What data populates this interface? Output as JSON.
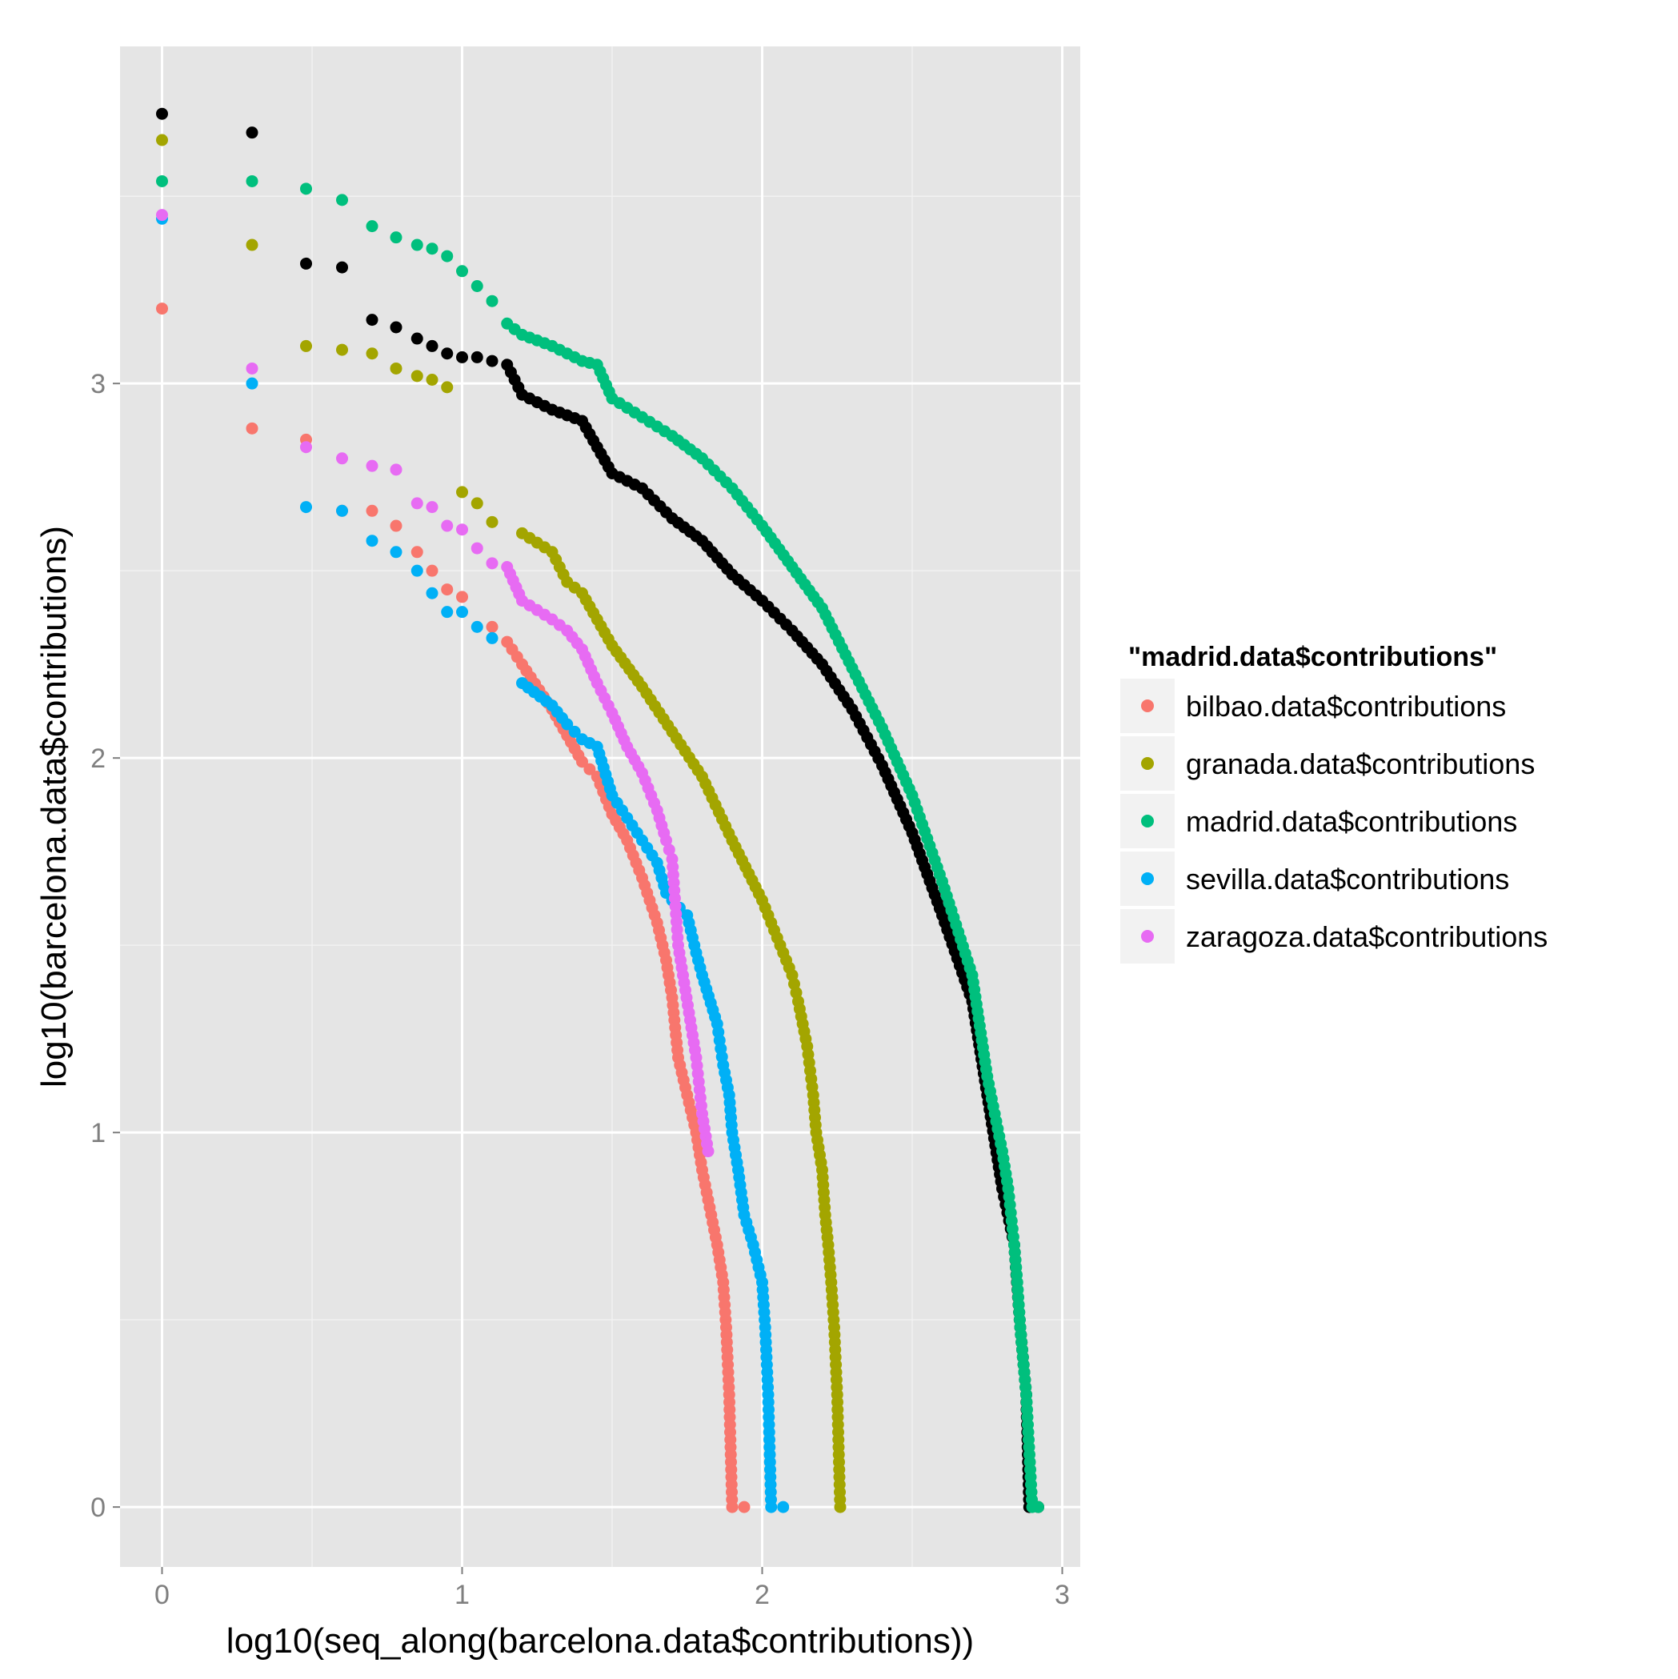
{
  "chart_data": {
    "type": "scatter",
    "xlabel": "log10(seq_along(barcelona.data$contributions))",
    "ylabel": "log10(barcelona.data$contributions)",
    "xlim": [
      -0.14,
      3.06
    ],
    "ylim": [
      -0.16,
      3.9
    ],
    "x_ticks": [
      0,
      1,
      2,
      3
    ],
    "y_ticks": [
      0,
      1,
      2,
      3
    ],
    "grid": true,
    "legend": {
      "title": "\"madrid.data$contributions\"",
      "placement": "right",
      "entries": [
        {
          "label": "bilbao.data$contributions",
          "color": "#F8766D"
        },
        {
          "label": "granada.data$contributions",
          "color": "#A3A500"
        },
        {
          "label": "madrid.data$contributions",
          "color": "#00BF7D"
        },
        {
          "label": "sevilla.data$contributions",
          "color": "#00B0F6"
        },
        {
          "label": "zaragoza.data$contributions",
          "color": "#E76BF3"
        }
      ]
    },
    "series": [
      {
        "color": "#000000",
        "points": [
          [
            0,
            3.72
          ],
          [
            0.3,
            3.67
          ],
          [
            0.48,
            3.32
          ],
          [
            0.6,
            3.31
          ],
          [
            0.7,
            3.17
          ],
          [
            0.78,
            3.15
          ],
          [
            0.85,
            3.12
          ],
          [
            0.9,
            3.1
          ],
          [
            0.95,
            3.08
          ],
          [
            1.0,
            3.07
          ],
          [
            1.05,
            3.07
          ],
          [
            1.1,
            3.06
          ],
          [
            1.15,
            3.05
          ],
          [
            1.2,
            2.97
          ],
          [
            1.3,
            2.93
          ],
          [
            1.4,
            2.9
          ],
          [
            1.5,
            2.76
          ],
          [
            1.6,
            2.72
          ],
          [
            1.7,
            2.64
          ],
          [
            1.8,
            2.58
          ],
          [
            1.9,
            2.49
          ],
          [
            2.0,
            2.42
          ],
          [
            2.1,
            2.34
          ],
          [
            2.2,
            2.25
          ],
          [
            2.3,
            2.13
          ],
          [
            2.4,
            1.98
          ],
          [
            2.5,
            1.8
          ],
          [
            2.6,
            1.58
          ],
          [
            2.7,
            1.35
          ],
          [
            2.75,
            1.1
          ],
          [
            2.8,
            0.85
          ],
          [
            2.84,
            0.7
          ],
          [
            2.86,
            0.48
          ],
          [
            2.88,
            0.3
          ],
          [
            2.89,
            0.0
          ],
          [
            2.92,
            0.0
          ]
        ]
      },
      {
        "name": "bilbao.data$contributions",
        "color": "#F8766D",
        "points": [
          [
            0,
            3.2
          ],
          [
            0.3,
            2.88
          ],
          [
            0.48,
            2.85
          ],
          [
            0.6,
            2.66
          ],
          [
            0.7,
            2.66
          ],
          [
            0.78,
            2.62
          ],
          [
            0.85,
            2.55
          ],
          [
            0.9,
            2.5
          ],
          [
            0.95,
            2.45
          ],
          [
            1.0,
            2.43
          ],
          [
            1.1,
            2.35
          ],
          [
            1.15,
            2.31
          ],
          [
            1.2,
            2.25
          ],
          [
            1.3,
            2.13
          ],
          [
            1.35,
            2.06
          ],
          [
            1.4,
            1.99
          ],
          [
            1.45,
            1.95
          ],
          [
            1.5,
            1.85
          ],
          [
            1.55,
            1.78
          ],
          [
            1.6,
            1.68
          ],
          [
            1.65,
            1.56
          ],
          [
            1.68,
            1.46
          ],
          [
            1.7,
            1.36
          ],
          [
            1.72,
            1.2
          ],
          [
            1.75,
            1.1
          ],
          [
            1.78,
            1.0
          ],
          [
            1.8,
            0.9
          ],
          [
            1.83,
            0.78
          ],
          [
            1.85,
            0.7
          ],
          [
            1.87,
            0.6
          ],
          [
            1.88,
            0.48
          ],
          [
            1.89,
            0.3
          ],
          [
            1.9,
            0.0
          ],
          [
            1.94,
            0.0
          ]
        ]
      },
      {
        "name": "granada.data$contributions",
        "color": "#A3A500",
        "points": [
          [
            0,
            3.65
          ],
          [
            0.3,
            3.37
          ],
          [
            0.48,
            3.1
          ],
          [
            0.6,
            3.09
          ],
          [
            0.7,
            3.08
          ],
          [
            0.78,
            3.04
          ],
          [
            0.85,
            3.02
          ],
          [
            0.9,
            3.01
          ],
          [
            0.95,
            2.99
          ],
          [
            1.0,
            2.71
          ],
          [
            1.05,
            2.68
          ],
          [
            1.1,
            2.63
          ],
          [
            1.2,
            2.6
          ],
          [
            1.3,
            2.55
          ],
          [
            1.35,
            2.47
          ],
          [
            1.4,
            2.44
          ],
          [
            1.5,
            2.3
          ],
          [
            1.6,
            2.19
          ],
          [
            1.7,
            2.07
          ],
          [
            1.8,
            1.95
          ],
          [
            1.9,
            1.78
          ],
          [
            2.0,
            1.62
          ],
          [
            2.05,
            1.52
          ],
          [
            2.1,
            1.42
          ],
          [
            2.12,
            1.35
          ],
          [
            2.15,
            1.23
          ],
          [
            2.17,
            1.1
          ],
          [
            2.18,
            1.0
          ],
          [
            2.2,
            0.9
          ],
          [
            2.21,
            0.78
          ],
          [
            2.22,
            0.7
          ],
          [
            2.23,
            0.6
          ],
          [
            2.24,
            0.48
          ],
          [
            2.25,
            0.3
          ],
          [
            2.26,
            0.0
          ]
        ]
      },
      {
        "name": "madrid.data$contributions",
        "color": "#00BF7D",
        "points": [
          [
            0,
            3.54
          ],
          [
            0.3,
            3.54
          ],
          [
            0.48,
            3.52
          ],
          [
            0.6,
            3.49
          ],
          [
            0.7,
            3.42
          ],
          [
            0.78,
            3.39
          ],
          [
            0.85,
            3.37
          ],
          [
            0.9,
            3.36
          ],
          [
            0.95,
            3.34
          ],
          [
            1.0,
            3.3
          ],
          [
            1.05,
            3.26
          ],
          [
            1.1,
            3.22
          ],
          [
            1.15,
            3.16
          ],
          [
            1.2,
            3.13
          ],
          [
            1.3,
            3.1
          ],
          [
            1.4,
            3.06
          ],
          [
            1.45,
            3.05
          ],
          [
            1.5,
            2.96
          ],
          [
            1.6,
            2.91
          ],
          [
            1.7,
            2.86
          ],
          [
            1.8,
            2.8
          ],
          [
            1.9,
            2.72
          ],
          [
            2.0,
            2.62
          ],
          [
            2.1,
            2.51
          ],
          [
            2.2,
            2.4
          ],
          [
            2.3,
            2.24
          ],
          [
            2.4,
            2.08
          ],
          [
            2.5,
            1.9
          ],
          [
            2.6,
            1.67
          ],
          [
            2.7,
            1.42
          ],
          [
            2.75,
            1.15
          ],
          [
            2.8,
            0.95
          ],
          [
            2.82,
            0.85
          ],
          [
            2.84,
            0.7
          ],
          [
            2.85,
            0.6
          ],
          [
            2.86,
            0.48
          ],
          [
            2.88,
            0.3
          ],
          [
            2.9,
            0.0
          ],
          [
            2.92,
            0.0
          ]
        ]
      },
      {
        "name": "sevilla.data$contributions",
        "color": "#00B0F6",
        "points": [
          [
            0,
            3.44
          ],
          [
            0.3,
            3.0
          ],
          [
            0.48,
            2.67
          ],
          [
            0.6,
            2.66
          ],
          [
            0.7,
            2.58
          ],
          [
            0.78,
            2.55
          ],
          [
            0.85,
            2.5
          ],
          [
            0.9,
            2.44
          ],
          [
            0.95,
            2.39
          ],
          [
            1.0,
            2.39
          ],
          [
            1.05,
            2.35
          ],
          [
            1.1,
            2.32
          ],
          [
            1.2,
            2.2
          ],
          [
            1.3,
            2.14
          ],
          [
            1.35,
            2.09
          ],
          [
            1.4,
            2.05
          ],
          [
            1.45,
            2.03
          ],
          [
            1.5,
            1.9
          ],
          [
            1.55,
            1.84
          ],
          [
            1.6,
            1.78
          ],
          [
            1.65,
            1.72
          ],
          [
            1.68,
            1.64
          ],
          [
            1.7,
            1.62
          ],
          [
            1.75,
            1.58
          ],
          [
            1.78,
            1.48
          ],
          [
            1.8,
            1.42
          ],
          [
            1.85,
            1.29
          ],
          [
            1.87,
            1.18
          ],
          [
            1.89,
            1.1
          ],
          [
            1.9,
            1.0
          ],
          [
            1.92,
            0.9
          ],
          [
            1.94,
            0.78
          ],
          [
            1.97,
            0.7
          ],
          [
            2.0,
            0.6
          ],
          [
            2.01,
            0.48
          ],
          [
            2.02,
            0.3
          ],
          [
            2.03,
            0.0
          ],
          [
            2.07,
            0.0
          ]
        ]
      },
      {
        "name": "zaragoza.data$contributions",
        "color": "#E76BF3",
        "points": [
          [
            0,
            3.45
          ],
          [
            0.3,
            3.04
          ],
          [
            0.48,
            2.83
          ],
          [
            0.6,
            2.8
          ],
          [
            0.7,
            2.78
          ],
          [
            0.78,
            2.77
          ],
          [
            0.85,
            2.68
          ],
          [
            0.9,
            2.67
          ],
          [
            0.95,
            2.62
          ],
          [
            1.0,
            2.61
          ],
          [
            1.05,
            2.56
          ],
          [
            1.1,
            2.52
          ],
          [
            1.15,
            2.51
          ],
          [
            1.2,
            2.42
          ],
          [
            1.3,
            2.37
          ],
          [
            1.35,
            2.34
          ],
          [
            1.4,
            2.29
          ],
          [
            1.45,
            2.2
          ],
          [
            1.5,
            2.12
          ],
          [
            1.55,
            2.03
          ],
          [
            1.6,
            1.96
          ],
          [
            1.65,
            1.86
          ],
          [
            1.68,
            1.78
          ],
          [
            1.7,
            1.73
          ],
          [
            1.72,
            1.5
          ],
          [
            1.74,
            1.4
          ],
          [
            1.76,
            1.3
          ],
          [
            1.78,
            1.2
          ],
          [
            1.8,
            1.05
          ],
          [
            1.82,
            0.95
          ]
        ]
      }
    ]
  }
}
